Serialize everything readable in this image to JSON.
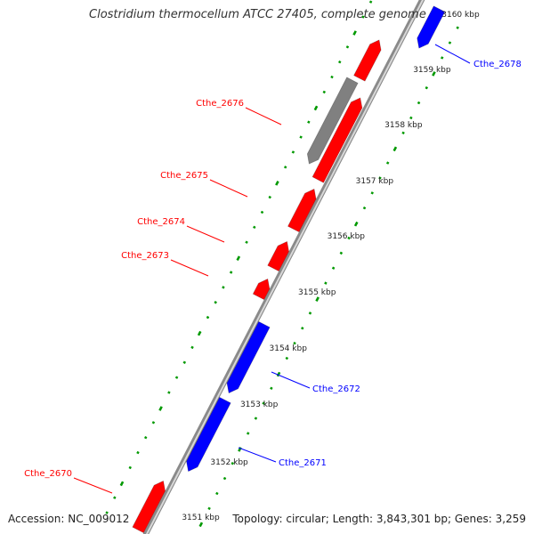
{
  "title": "Clostridium thermocellum ATCC 27405, complete genome",
  "footer": {
    "accession": "Accession: NC_009012",
    "summary": "Topology: circular; Length: 3,843,301 bp; Genes: 3,259"
  },
  "ticks": [
    "3160 kbp",
    "3159 kbp",
    "3158 kbp",
    "3157 kbp",
    "3156 kbp",
    "3155 kbp",
    "3154 kbp",
    "3153 kbp",
    "3152 kbp",
    "3151 kbp"
  ],
  "gene_labels": [
    "Cthe_2678",
    "Cthe_2676",
    "Cthe_2675",
    "Cthe_2674",
    "Cthe_2673",
    "Cthe_2672",
    "Cthe_2671",
    "Cthe_2670"
  ],
  "colors": {
    "forward": "#ff0000",
    "reverse": "#0000ff",
    "other": "#808080",
    "gc": "#009900",
    "backbone": "#a0a0a0"
  }
}
